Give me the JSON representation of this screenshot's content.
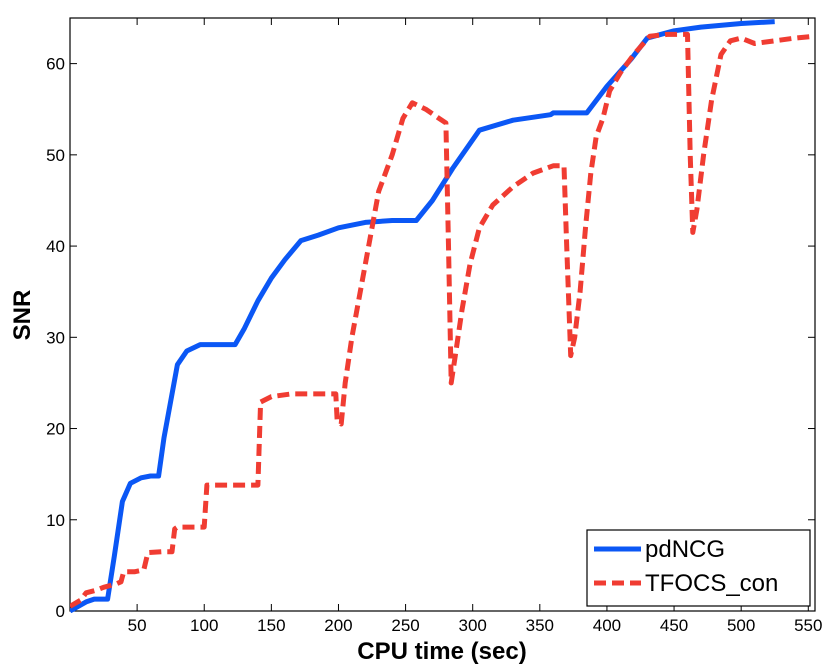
{
  "chart_data": {
    "type": "line",
    "title": "",
    "xlabel": "CPU time (sec)",
    "ylabel": "SNR",
    "xlim": [
      0,
      555
    ],
    "ylim": [
      0,
      65
    ],
    "xticks": [
      50,
      100,
      150,
      200,
      250,
      300,
      350,
      400,
      450,
      500,
      550
    ],
    "yticks": [
      0,
      10,
      20,
      30,
      40,
      50,
      60
    ],
    "grid": false,
    "legend_position": "bottom-right",
    "series": [
      {
        "name": "pdNCG",
        "color": "#0b57f5",
        "dash": "solid",
        "points": [
          [
            0,
            0
          ],
          [
            12,
            1
          ],
          [
            18,
            1.3
          ],
          [
            28,
            1.3
          ],
          [
            33,
            6
          ],
          [
            39,
            12
          ],
          [
            45,
            14
          ],
          [
            53,
            14.6
          ],
          [
            60,
            14.8
          ],
          [
            66,
            14.8
          ],
          [
            70,
            19
          ],
          [
            75,
            23
          ],
          [
            80,
            27
          ],
          [
            87,
            28.5
          ],
          [
            97,
            29.2
          ],
          [
            105,
            29.2
          ],
          [
            123,
            29.2
          ],
          [
            130,
            31
          ],
          [
            140,
            34
          ],
          [
            150,
            36.5
          ],
          [
            160,
            38.5
          ],
          [
            172,
            40.6
          ],
          [
            185,
            41.2
          ],
          [
            200,
            42
          ],
          [
            220,
            42.6
          ],
          [
            240,
            42.8
          ],
          [
            258,
            42.8
          ],
          [
            270,
            45
          ],
          [
            285,
            48.5
          ],
          [
            305,
            52.7
          ],
          [
            330,
            53.8
          ],
          [
            358,
            54.4
          ],
          [
            360,
            54.6
          ],
          [
            385,
            54.6
          ],
          [
            400,
            57.5
          ],
          [
            418,
            60.5
          ],
          [
            430,
            62.8
          ],
          [
            450,
            63.6
          ],
          [
            470,
            64
          ],
          [
            500,
            64.4
          ],
          [
            525,
            64.6
          ]
        ]
      },
      {
        "name": "TFOCS_con",
        "color": "#f03c32",
        "dash": "dashed",
        "points": [
          [
            0,
            0.5
          ],
          [
            8,
            1.2
          ],
          [
            12,
            2
          ],
          [
            20,
            2.3
          ],
          [
            25,
            2.6
          ],
          [
            30,
            2.8
          ],
          [
            35,
            3
          ],
          [
            38,
            3.2
          ],
          [
            40,
            4.3
          ],
          [
            48,
            4.3
          ],
          [
            55,
            4.5
          ],
          [
            58,
            6.4
          ],
          [
            68,
            6.5
          ],
          [
            72,
            6.5
          ],
          [
            76,
            6.5
          ],
          [
            78,
            9
          ],
          [
            80,
            9.2
          ],
          [
            90,
            9.2
          ],
          [
            100,
            9.2
          ],
          [
            102,
            13.8
          ],
          [
            110,
            13.8
          ],
          [
            120,
            13.8
          ],
          [
            140,
            13.8
          ],
          [
            142,
            22.9
          ],
          [
            150,
            23.5
          ],
          [
            165,
            23.8
          ],
          [
            180,
            23.8
          ],
          [
            198,
            23.8
          ],
          [
            199,
            21
          ],
          [
            202,
            20.5
          ],
          [
            205,
            25
          ],
          [
            210,
            30
          ],
          [
            215,
            34
          ],
          [
            220,
            38
          ],
          [
            225,
            42
          ],
          [
            230,
            46
          ],
          [
            240,
            50
          ],
          [
            248,
            54
          ],
          [
            255,
            55.7
          ],
          [
            265,
            55
          ],
          [
            275,
            54
          ],
          [
            280,
            53.5
          ],
          [
            282,
            40
          ],
          [
            284,
            25
          ],
          [
            287,
            28
          ],
          [
            292,
            33
          ],
          [
            298,
            38
          ],
          [
            305,
            42
          ],
          [
            315,
            44.5
          ],
          [
            330,
            46.5
          ],
          [
            345,
            48
          ],
          [
            360,
            48.8
          ],
          [
            368,
            48.8
          ],
          [
            370,
            40
          ],
          [
            373,
            28
          ],
          [
            376,
            30
          ],
          [
            380,
            35
          ],
          [
            384,
            42
          ],
          [
            388,
            48
          ],
          [
            392,
            52
          ],
          [
            397,
            54
          ],
          [
            402,
            57
          ],
          [
            410,
            59
          ],
          [
            420,
            61
          ],
          [
            432,
            63
          ],
          [
            445,
            63.2
          ],
          [
            460,
            63.2
          ],
          [
            462,
            50
          ],
          [
            464,
            41.5
          ],
          [
            467,
            44
          ],
          [
            472,
            50
          ],
          [
            478,
            56
          ],
          [
            485,
            61
          ],
          [
            492,
            62.5
          ],
          [
            500,
            62.8
          ],
          [
            510,
            62.2
          ],
          [
            525,
            62.5
          ],
          [
            540,
            62.8
          ],
          [
            555,
            63
          ]
        ]
      }
    ]
  }
}
